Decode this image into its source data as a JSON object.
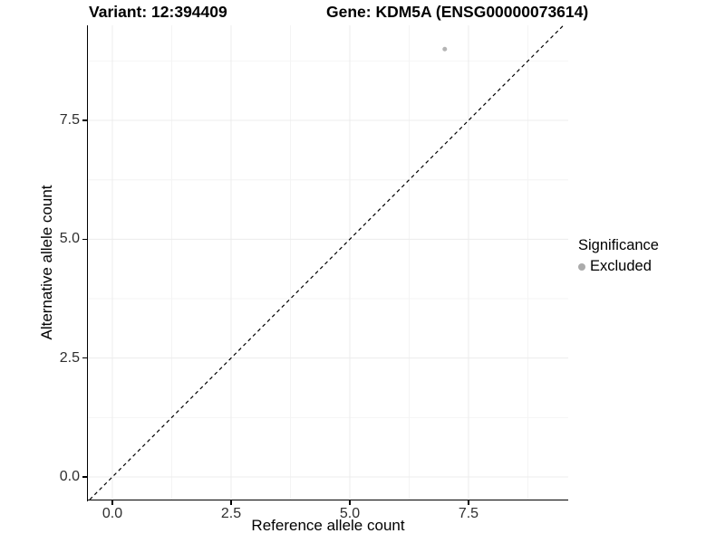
{
  "header": {
    "title_left": "Variant: 12:394409",
    "title_right": "Gene: KDM5A (ENSG00000073614)"
  },
  "chart_data": {
    "type": "scatter",
    "xlabel": "Reference allele count",
    "ylabel": "Alternative allele count",
    "xlim": [
      -0.515,
      9.6
    ],
    "ylim": [
      -0.476,
      9.5
    ],
    "x_ticks": [
      {
        "value": 0,
        "label": "0.0"
      },
      {
        "value": 2.5,
        "label": "2.5"
      },
      {
        "value": 5,
        "label": "5.0"
      },
      {
        "value": 7.5,
        "label": "7.5"
      }
    ],
    "y_ticks": [
      {
        "value": 0,
        "label": "0.0"
      },
      {
        "value": 2.5,
        "label": "2.5"
      },
      {
        "value": 5,
        "label": "5.0"
      },
      {
        "value": 7.5,
        "label": "7.5"
      }
    ],
    "minor_grid_x": [
      1.25,
      3.75,
      6.25,
      8.75
    ],
    "minor_grid_y": [
      1.25,
      3.75,
      6.25,
      8.75
    ],
    "grid": true,
    "grid_major_color": "#ececec",
    "grid_minor_color": "#f4f4f4",
    "points": [
      {
        "x": 7,
        "y": 9,
        "series": "Excluded",
        "color": "#b4b4b4",
        "radius": 2.5
      }
    ],
    "identity_line": {
      "slope": 1,
      "intercept": 0,
      "style": "dashed",
      "color": "#000000"
    }
  },
  "legend": {
    "title": "Significance",
    "items": [
      {
        "label": "Excluded",
        "color": "#ababab"
      }
    ]
  }
}
